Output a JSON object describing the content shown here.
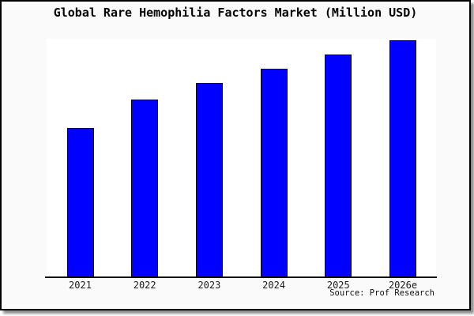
{
  "window": {
    "background_color": "#fafafa",
    "panel_color": "#ffffff",
    "frame_border_color": "#000000",
    "shadow_color": "#8e8e8e"
  },
  "chart_data": {
    "type": "bar",
    "title": "Global Rare Hemophilia Factors Market (Million USD)",
    "unit": "Million USD",
    "categories": [
      "2021",
      "2022",
      "2023",
      "2024",
      "2025",
      "2026e"
    ],
    "relative_values": [
      0.63,
      0.75,
      0.82,
      0.88,
      0.94,
      1.0
    ],
    "bar_color": "#0000ff",
    "bar_edge_color": "#000000",
    "layout": {
      "y_axis_labeled": false,
      "gridlines": false,
      "legend": "none",
      "x_axis_line": true
    }
  },
  "source": {
    "label": "Source: Prof Research"
  }
}
